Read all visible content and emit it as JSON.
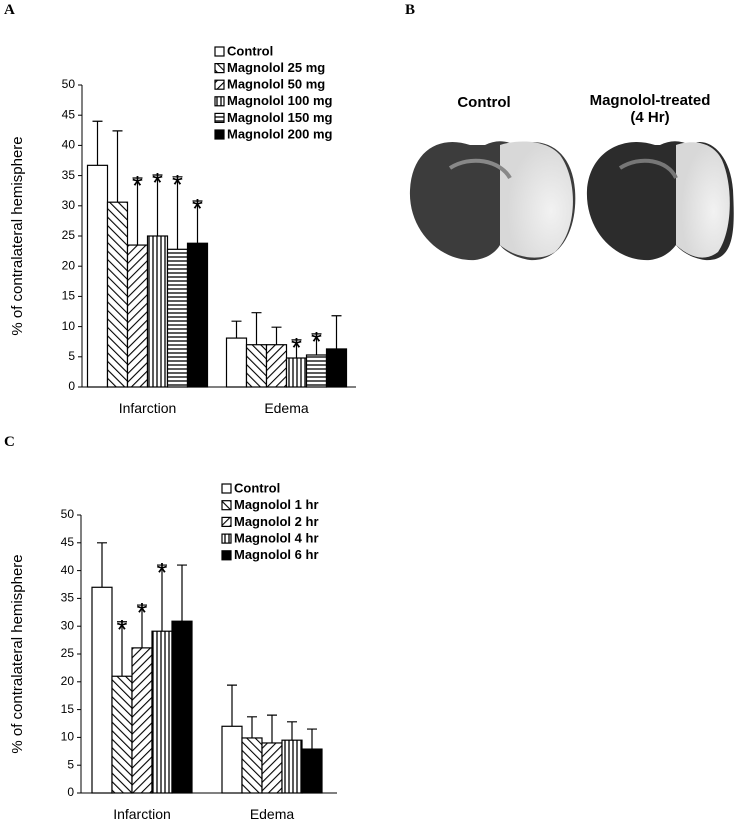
{
  "panels": {
    "a": "A",
    "b": "B",
    "c": "C"
  },
  "image_panel": {
    "left_label": "Control",
    "right_label": "Magnolol-treated\n(4 Hr)"
  },
  "chart_data": [
    {
      "type": "bar",
      "ylabel": "% of contralateral hemisphere",
      "categories": [
        "Infarction",
        "Edema"
      ],
      "ylim": [
        0,
        50
      ],
      "yticks": [
        0,
        5,
        10,
        15,
        20,
        25,
        30,
        35,
        40,
        45,
        50
      ],
      "significance_marker": "*",
      "series": [
        {
          "name": "Control",
          "pattern": "white",
          "values": [
            36.7,
            8.1
          ],
          "errors": [
            7.3,
            2.8
          ],
          "significant": [
            false,
            false
          ]
        },
        {
          "name": "Magnolol 25 mg",
          "pattern": "diag-down",
          "values": [
            30.6,
            7.0
          ],
          "errors": [
            11.8,
            5.3
          ],
          "significant": [
            false,
            false
          ]
        },
        {
          "name": "Magnolol 50 mg",
          "pattern": "diag-up",
          "values": [
            23.5,
            7.0
          ],
          "errors": [
            11.1,
            2.9
          ],
          "significant": [
            true,
            false
          ]
        },
        {
          "name": "Magnolol 100 mg",
          "pattern": "vertical",
          "values": [
            25.0,
            4.8
          ],
          "errors": [
            10.1,
            3.0
          ],
          "significant": [
            true,
            true
          ]
        },
        {
          "name": "Magnolol 150 mg",
          "pattern": "horizontal",
          "values": [
            22.8,
            5.3
          ],
          "errors": [
            12.0,
            3.5
          ],
          "significant": [
            true,
            true
          ]
        },
        {
          "name": "Magnolol 200 mg",
          "pattern": "black",
          "values": [
            23.8,
            6.3
          ],
          "errors": [
            7.0,
            5.5
          ],
          "significant": [
            true,
            false
          ]
        }
      ]
    },
    {
      "type": "bar",
      "ylabel": "% of contralateral hemisphere",
      "categories": [
        "Infarction",
        "Edema"
      ],
      "ylim": [
        0,
        50
      ],
      "yticks": [
        0,
        5,
        10,
        15,
        20,
        25,
        30,
        35,
        40,
        45,
        50
      ],
      "significance_marker": "*",
      "series": [
        {
          "name": "Control",
          "pattern": "white",
          "values": [
            37.0,
            12.0
          ],
          "errors": [
            8.0,
            7.4
          ],
          "significant": [
            false,
            false
          ]
        },
        {
          "name": "Magnolol 1 hr",
          "pattern": "diag-down",
          "values": [
            21.0,
            9.9
          ],
          "errors": [
            9.8,
            3.8
          ],
          "significant": [
            true,
            false
          ]
        },
        {
          "name": "Magnolol 2 hr",
          "pattern": "diag-up",
          "values": [
            26.1,
            9.0
          ],
          "errors": [
            7.7,
            5.0
          ],
          "significant": [
            true,
            false
          ]
        },
        {
          "name": "Magnolol 4 hr",
          "pattern": "vertical",
          "values": [
            29.1,
            9.5
          ],
          "errors": [
            11.9,
            3.3
          ],
          "significant": [
            true,
            false
          ]
        },
        {
          "name": "Magnolol 6 hr",
          "pattern": "black",
          "values": [
            30.9,
            7.9
          ],
          "errors": [
            10.1,
            3.6
          ],
          "significant": [
            false,
            false
          ]
        }
      ]
    }
  ]
}
